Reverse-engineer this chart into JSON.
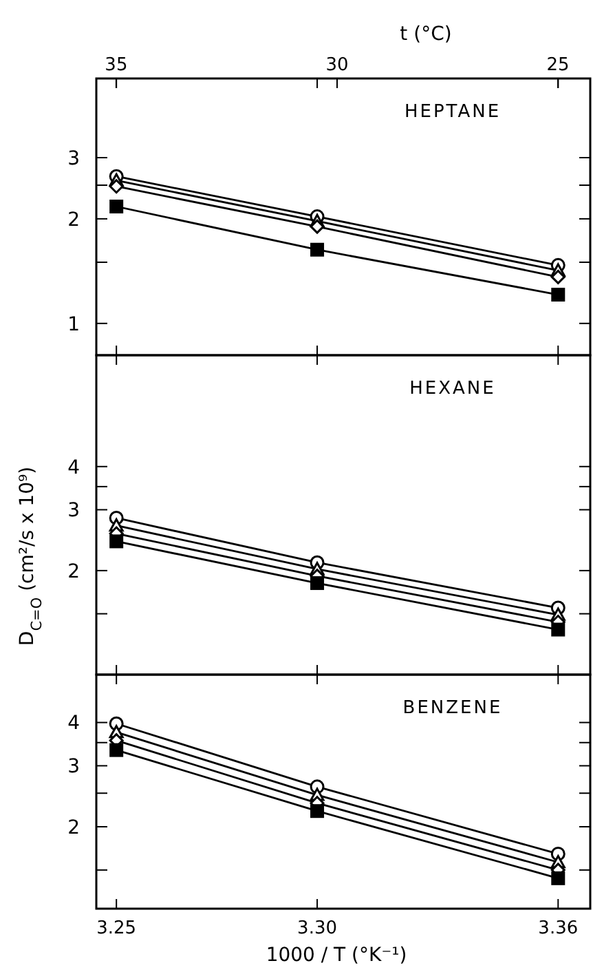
{
  "chart_data": [
    {
      "type": "line",
      "title": "HEPTANE",
      "x": [
        3.25,
        3.3,
        3.36
      ],
      "xlim": [
        3.245,
        3.368
      ],
      "xticks": [
        {
          "value": 3.25,
          "label": null
        },
        {
          "value": 3.3,
          "label": null
        },
        {
          "value": 3.36,
          "label": null
        }
      ],
      "x2label": "t (°C)",
      "x2lim": [
        35.45,
        24.27
      ],
      "x2ticks": [
        35,
        30,
        25
      ],
      "log": "y",
      "ylim": [
        0.81,
        5.07
      ],
      "yticks": [
        1,
        {
          "value": 1.5,
          "label": null
        },
        2,
        {
          "value": 2.5,
          "label": null
        },
        3
      ],
      "tick_labels": "y",
      "series": [
        {
          "color": "#000000",
          "marker": "circle",
          "values": [
            2.65,
            2.03,
            1.47
          ]
        },
        {
          "color": "#000000",
          "marker": "triangle",
          "values": [
            2.58,
            1.97,
            1.42
          ]
        },
        {
          "color": "#000000",
          "marker": "diamond",
          "values": [
            2.48,
            1.9,
            1.36
          ]
        },
        {
          "color": "#000000",
          "marker": "square",
          "values": [
            2.17,
            1.63,
            1.21
          ]
        }
      ]
    },
    {
      "type": "line",
      "title": "HEXANE",
      "ylabel": "D$_{C=O}$ (cm²/s x 10⁹)",
      "x": [
        3.25,
        3.3,
        3.36
      ],
      "xlim": [
        3.245,
        3.368
      ],
      "xticks": [
        {
          "value": 3.25,
          "label": null
        },
        {
          "value": 3.3,
          "label": null
        },
        {
          "value": 3.36,
          "label": null
        }
      ],
      "log": "y",
      "ylim": [
        1,
        8.4
      ],
      "yticks": [
        {
          "value": 1.5,
          "label": null
        },
        2,
        3,
        {
          "value": 3.5,
          "label": null
        },
        4
      ],
      "tick_labels": "y",
      "series": [
        {
          "color": "#000000",
          "marker": "circle",
          "values": [
            2.84,
            2.11,
            1.56
          ]
        },
        {
          "color": "#000000",
          "marker": "triangle",
          "values": [
            2.7,
            2.02,
            1.49
          ]
        },
        {
          "color": "#000000",
          "marker": "diamond",
          "values": [
            2.56,
            1.93,
            1.42
          ]
        },
        {
          "color": "#000000",
          "marker": "square",
          "values": [
            2.43,
            1.84,
            1.35
          ]
        }
      ]
    },
    {
      "type": "line",
      "title": "BENZENE",
      "xlabel": "1000 / T (°K⁻¹)",
      "x": [
        3.25,
        3.3,
        3.36
      ],
      "xlim": [
        3.245,
        3.368
      ],
      "xticks": [
        3.25,
        {
          "value": 3.3,
          "label": "3.30"
        },
        3.36
      ],
      "log": "y",
      "ylim": [
        1.16,
        5.5
      ],
      "yticks": [
        {
          "value": 1.5,
          "label": null
        },
        2,
        {
          "value": 2.5,
          "label": null
        },
        3,
        {
          "value": 3.5,
          "label": null
        },
        4
      ],
      "series": [
        {
          "color": "#000000",
          "marker": "circle",
          "values": [
            3.97,
            2.61,
            1.67
          ]
        },
        {
          "color": "#000000",
          "marker": "triangle",
          "values": [
            3.75,
            2.47,
            1.58
          ]
        },
        {
          "color": "#000000",
          "marker": "diamond",
          "values": [
            3.55,
            2.34,
            1.5
          ]
        },
        {
          "color": "#000000",
          "marker": "square",
          "values": [
            3.33,
            2.22,
            1.42
          ]
        }
      ]
    }
  ]
}
